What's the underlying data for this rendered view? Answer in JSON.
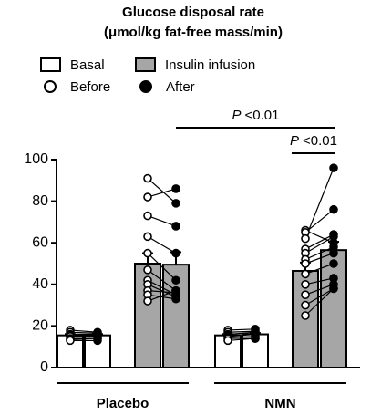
{
  "chart_data": {
    "type": "bar",
    "title": "Glucose disposal rate",
    "subtitle": "(μmol/kg fat-free mass/min)",
    "categories": [
      "Placebo",
      "NMN"
    ],
    "legend": {
      "conditions": [
        {
          "name": "Basal",
          "color": "#ffffff"
        },
        {
          "name": "Insulin infusion",
          "color": "#a6a6a6"
        }
      ],
      "timepoints": [
        {
          "name": "Before",
          "color": "#ffffff"
        },
        {
          "name": "After",
          "color": "#000000"
        }
      ]
    },
    "series": [
      {
        "condition": 0,
        "timepoint": 0,
        "values": [
          15.5,
          15.5
        ],
        "errors": [
          0.6,
          0.6
        ],
        "points": [
          [
            18,
            17,
            16,
            15.5,
            15,
            14,
            13.5,
            13
          ],
          [
            18,
            17,
            16,
            15.5,
            15,
            14.5,
            14,
            13
          ]
        ]
      },
      {
        "condition": 0,
        "timepoint": 1,
        "values": [
          15.5,
          16
        ],
        "errors": [
          0.6,
          0.6
        ],
        "points": [
          [
            17,
            16.5,
            16,
            15,
            15.5,
            14,
            14,
            13
          ],
          [
            18.5,
            17.5,
            17,
            16,
            16,
            15,
            14,
            14
          ]
        ]
      },
      {
        "condition": 1,
        "timepoint": 0,
        "values": [
          50,
          46.5
        ],
        "errors": [
          5,
          4
        ],
        "points": [
          [
            91,
            82,
            73,
            63,
            55,
            47,
            42,
            40,
            37,
            35,
            32
          ],
          [
            66,
            65,
            62,
            57,
            55,
            52,
            50,
            45,
            40,
            35,
            30,
            25
          ]
        ]
      },
      {
        "condition": 1,
        "timepoint": 1,
        "values": [
          49.5,
          56.5
        ],
        "errors": [
          6,
          4
        ],
        "points": [
          [
            79,
            86,
            68,
            55,
            42,
            37,
            35,
            34,
            36,
            33,
            37
          ],
          [
            60,
            76,
            96,
            64,
            63,
            58,
            55,
            50,
            43,
            40,
            38,
            38
          ]
        ]
      }
    ],
    "annotations": [
      {
        "symbol": "P",
        "text": "<0.01"
      },
      {
        "symbol": "P",
        "text": "<0.01"
      }
    ],
    "ylim": [
      0,
      100
    ],
    "yticks": [
      0,
      20,
      40,
      60,
      80,
      100
    ],
    "grid": false
  }
}
